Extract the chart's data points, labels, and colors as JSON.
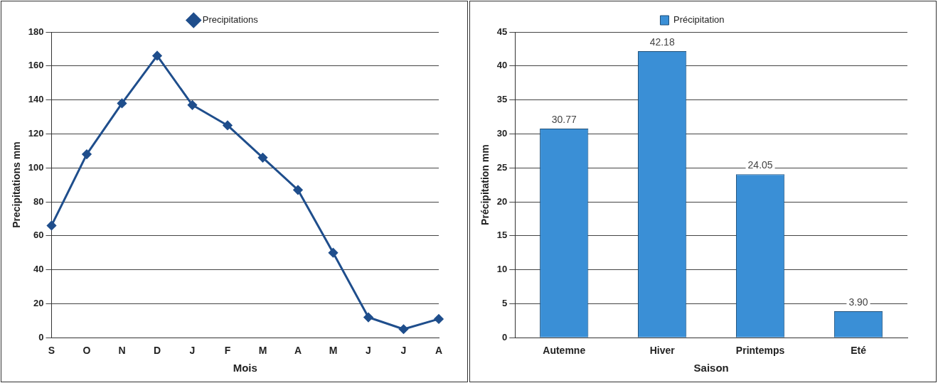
{
  "chart_data": [
    {
      "type": "line",
      "xlabel": "Mois",
      "ylabel": "Precipitations mm",
      "categories": [
        "S",
        "O",
        "N",
        "D",
        "J",
        "F",
        "M",
        "A",
        "M",
        "J",
        "J",
        "A"
      ],
      "series": [
        {
          "name": "Precipitations",
          "color": "#1f4e8c",
          "values": [
            66,
            108,
            138,
            166,
            137,
            125,
            106,
            87,
            50,
            12,
            5,
            11
          ]
        }
      ],
      "ylim": [
        0,
        180
      ],
      "yticks": [
        0,
        20,
        40,
        60,
        80,
        100,
        120,
        140,
        160,
        180
      ],
      "grid": "y",
      "legend": "top",
      "marker": "diamond",
      "line_style": "solid"
    },
    {
      "type": "bar",
      "xlabel": "Saison",
      "ylabel": "Précipitation mm",
      "categories": [
        "Autemne",
        "Hiver",
        "Printemps",
        "Eté"
      ],
      "series": [
        {
          "name": "Précipitation",
          "color": "#3a8fd6",
          "values": [
            30.77,
            42.18,
            24.05,
            3.9
          ]
        }
      ],
      "value_labels": [
        "30.77",
        "42.18",
        "24.05",
        "3.90"
      ],
      "ylim": [
        0,
        45
      ],
      "yticks": [
        0,
        5,
        10,
        15,
        20,
        25,
        30,
        35,
        40,
        45
      ],
      "grid": "y",
      "legend": "top"
    }
  ]
}
